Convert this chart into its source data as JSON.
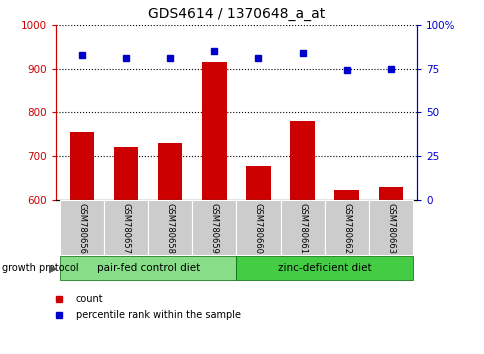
{
  "title": "GDS4614 / 1370648_a_at",
  "samples": [
    "GSM780656",
    "GSM780657",
    "GSM780658",
    "GSM780659",
    "GSM780660",
    "GSM780661",
    "GSM780662",
    "GSM780663"
  ],
  "bar_values": [
    755,
    720,
    730,
    915,
    678,
    780,
    622,
    630
  ],
  "percentile_values": [
    83,
    81,
    81,
    85,
    81,
    84,
    74,
    75
  ],
  "ylim_left": [
    600,
    1000
  ],
  "ylim_right": [
    0,
    100
  ],
  "yticks_left": [
    600,
    700,
    800,
    900,
    1000
  ],
  "yticks_right": [
    0,
    25,
    50,
    75,
    100
  ],
  "bar_color": "#cc0000",
  "dot_color": "#0000cc",
  "group1_label": "pair-fed control diet",
  "group2_label": "zinc-deficient diet",
  "group1_indices": [
    0,
    1,
    2,
    3
  ],
  "group2_indices": [
    4,
    5,
    6,
    7
  ],
  "group1_color": "#88dd88",
  "group2_color": "#44cc44",
  "growth_protocol_label": "growth protocol",
  "legend_count_label": "count",
  "legend_percentile_label": "percentile rank within the sample",
  "left_tick_color": "#cc0000",
  "right_tick_color": "#0000cc",
  "grid_color": "#000000",
  "background_plot": "#ffffff",
  "xticklabel_bg": "#cccccc",
  "bar_width": 0.55
}
